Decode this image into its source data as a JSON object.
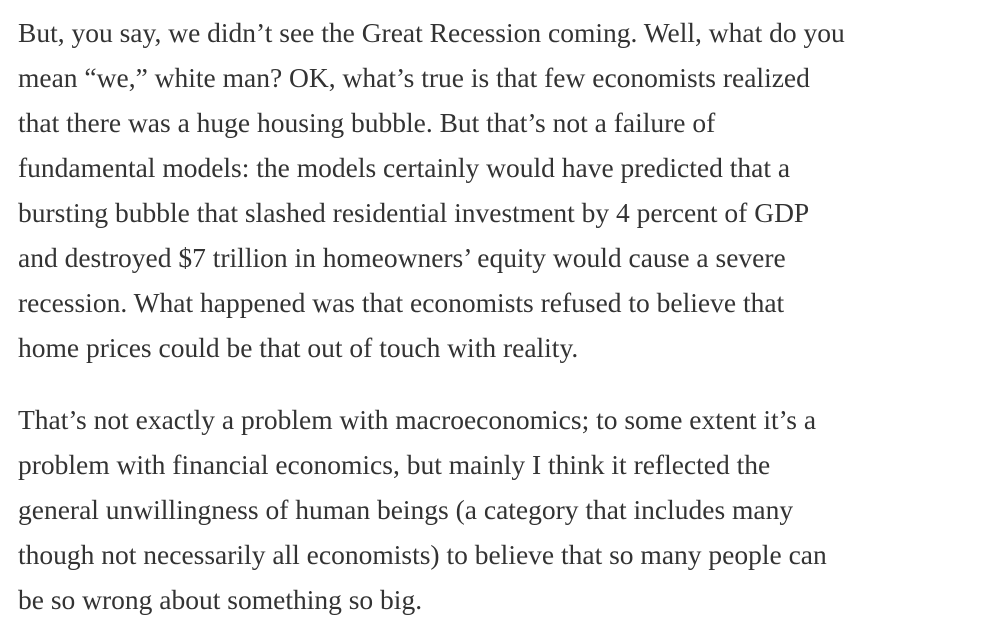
{
  "paragraphs": [
    {
      "lines": [
        "But, you say, we didn’t see the Great Recession coming. Well, what do you",
        "mean “we,” white man? OK, what’s true is that few economists realized",
        "that there was a huge housing bubble. But that’s not a failure of",
        "fundamental models: the models certainly would have predicted that a",
        "bursting bubble that slashed residential investment by 4 percent of GDP",
        "and destroyed $7 trillion in homeowners’ equity would cause a severe",
        "recession. What happened was that economists refused to believe that",
        "home prices could be that out of touch with reality."
      ]
    },
    {
      "lines": [
        "That’s not exactly a problem with macroeconomics; to some extent it’s a",
        "problem with financial economics, but mainly I think it reflected the",
        "general unwillingness of human beings (a category that includes many",
        "though not necessarily all economists) to believe that so many people can",
        "be so wrong about something so big."
      ]
    }
  ]
}
